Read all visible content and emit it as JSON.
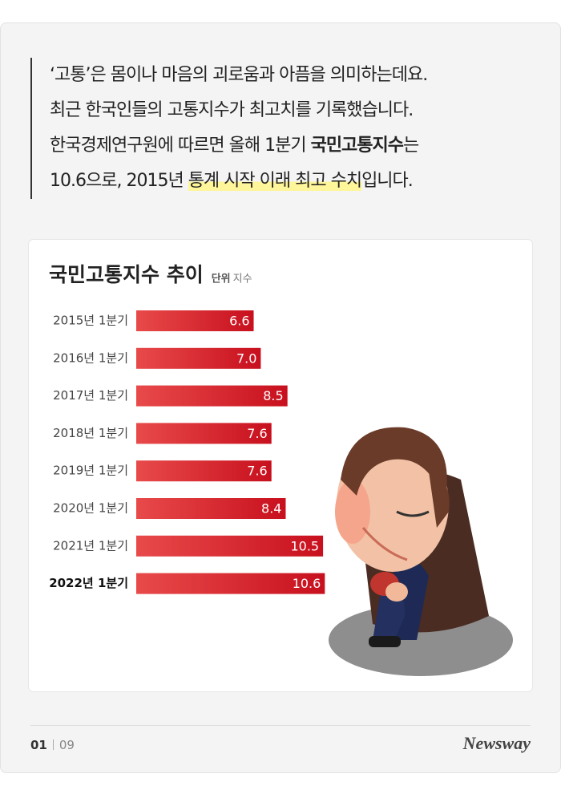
{
  "intro": {
    "lines": [
      [
        "‘고통’은 몸이나 마음의 괴로움과 아픔을 의미하는데요."
      ],
      [
        "최근 한국인들의 고통지수가 최고치를 기록했습니다."
      ],
      [
        "한국경제연구원에 따르면 올해 1분기 ",
        "국민고통지수",
        "는"
      ],
      [
        "10.6으로, 2015년 ",
        "통계 시작 이래 최고 수치",
        "입니다."
      ]
    ]
  },
  "chart_data": {
    "type": "bar",
    "orientation": "horizontal",
    "title": "국민고통지수 추이",
    "unit_label": "단위",
    "unit": "지수",
    "categories": [
      "2015년 1분기",
      "2016년 1분기",
      "2017년 1분기",
      "2018년 1분기",
      "2019년 1분기",
      "2020년 1분기",
      "2021년 1분기",
      "2022년 1분기"
    ],
    "values": [
      6.6,
      7.0,
      8.5,
      7.6,
      7.6,
      8.4,
      10.5,
      10.6
    ],
    "value_labels": [
      "6.6",
      "7.0",
      "8.5",
      "7.6",
      "7.6",
      "8.4",
      "10.5",
      "10.6"
    ],
    "color": "#c8101e"
  },
  "footer": {
    "page": "01",
    "total": "09",
    "brand": "Newsway"
  }
}
